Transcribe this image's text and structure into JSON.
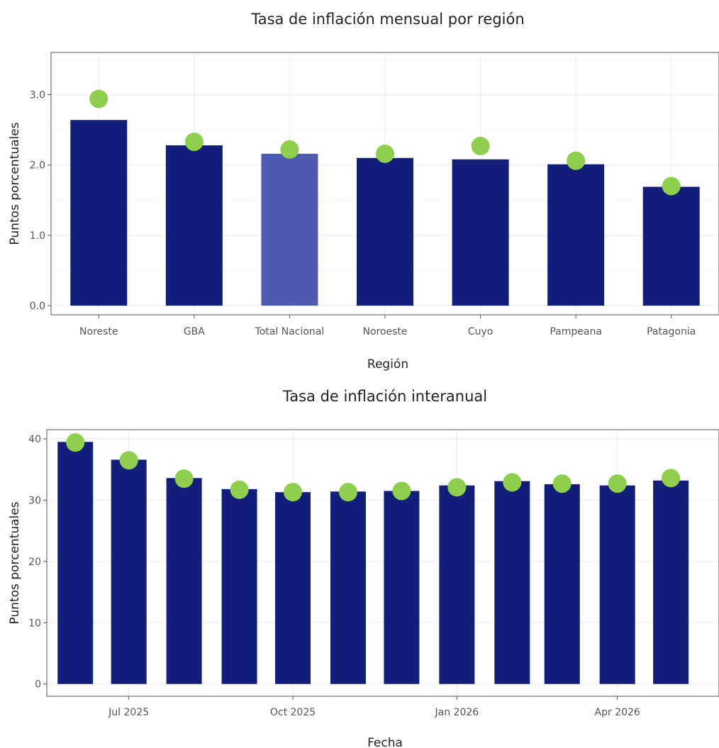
{
  "colors": {
    "bar": "#131d7a",
    "bar_highlight": "#4f5bb0",
    "marker": "#8ed04d",
    "grid": "#eeeeee",
    "frame": "#555555"
  },
  "chart_data": [
    {
      "type": "bar",
      "title": "Tasa de inflación mensual por región",
      "xlabel": "Región",
      "ylabel": "Puntos porcentuales",
      "categories": [
        "Noreste",
        "GBA",
        "Total Nacional",
        "Noroeste",
        "Cuyo",
        "Pampeana",
        "Patagonia"
      ],
      "series": [
        {
          "values": [
            2.64,
            2.28,
            2.16,
            2.1,
            2.08,
            2.01,
            1.69
          ]
        },
        {
          "values": [
            2.94,
            2.33,
            2.22,
            2.16,
            2.27,
            2.06,
            1.7
          ]
        }
      ],
      "highlight_category": "Total Nacional",
      "yticks": [
        "0.0",
        "1.0",
        "2.0",
        "3.0"
      ],
      "ylim": [
        -0.13,
        3.6
      ],
      "grid": true,
      "legend": "none"
    },
    {
      "type": "bar",
      "title": "Tasa de inflación interanual",
      "xlabel": "Fecha",
      "ylabel": "Puntos porcentuales",
      "x": [
        "2025-06-01",
        "2025-07-01",
        "2025-08-01",
        "2025-09-01",
        "2025-10-01",
        "2025-11-01",
        "2025-12-01",
        "2026-01-01",
        "2026-02-01",
        "2026-03-01",
        "2026-04-01",
        "2026-05-01"
      ],
      "series": [
        {
          "values": [
            39.5,
            36.6,
            33.6,
            31.8,
            31.3,
            31.4,
            31.5,
            32.4,
            33.1,
            32.6,
            32.4,
            33.2
          ]
        },
        {
          "values": [
            39.4,
            36.5,
            33.5,
            31.7,
            31.3,
            31.3,
            31.5,
            32.1,
            32.9,
            32.7,
            32.7,
            33.6
          ]
        }
      ],
      "xticks": [
        "Jul 2025",
        "Oct 2025",
        "Jan 2026",
        "Apr 2026"
      ],
      "xtick_dates": [
        "2025-07-01",
        "2025-10-01",
        "2026-01-01",
        "2026-04-01"
      ],
      "xlim": [
        "2025-05-16",
        "2026-05-28"
      ],
      "yticks": [
        "0",
        "10",
        "20",
        "30",
        "40"
      ],
      "ylim": [
        -2,
        41.5
      ],
      "grid": true,
      "legend": "none"
    }
  ]
}
